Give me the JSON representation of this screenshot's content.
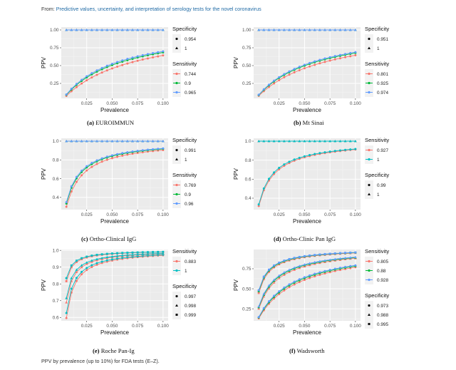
{
  "header": {
    "prefix": "From: ",
    "link_text": "Predictive values, uncertainty, and interpretation of serology tests for the novel coronavirus"
  },
  "footer": {
    "caption": "PPV by prevalence (up to 10%) for FDA tests (E–Z)."
  },
  "colors": {
    "red": "#F8766D",
    "green": "#00BA38",
    "blue": "#619CFF",
    "cyan": "#00BFC4",
    "panel_bg": "#EBEBEB"
  },
  "chart_data": [
    {
      "id": "a",
      "type": "line",
      "caption_label": "(a)",
      "caption_text": "EUROIMMUN",
      "xlabel": "Prevalence",
      "ylabel": "PPV",
      "x_range": [
        0.005,
        0.1
      ],
      "x_step": 0.005,
      "xlim": [
        0.0,
        0.105
      ],
      "ylim": [
        0.04,
        1.04
      ],
      "xticks": [
        "0.025",
        "0.050",
        "0.075",
        "0.100"
      ],
      "xtick_values": [
        0.025,
        0.05,
        0.075,
        0.1
      ],
      "yticks": [
        "0.25",
        "0.50",
        "0.75",
        "1.00"
      ],
      "ytick_values": [
        0.25,
        0.5,
        0.75,
        1.0
      ],
      "legend_order": [
        "specificity",
        "sensitivity"
      ],
      "sensitivity": {
        "title": "Sensitivity",
        "values": [
          "0.744",
          "0.9",
          "0.965"
        ],
        "colors": [
          "#F8766D",
          "#00BA38",
          "#619CFF"
        ]
      },
      "specificity": {
        "title": "Specificity",
        "values": [
          "0.954",
          "1"
        ],
        "shapes": [
          "circle",
          "triangle"
        ]
      },
      "series_note": "PPV = Se*p/(Se*p+(1-Sp)*(1-p)) for each Sensitivity x Specificity combination"
    },
    {
      "id": "b",
      "type": "line",
      "caption_label": "(b)",
      "caption_text": "Mt Sinai",
      "xlabel": "Prevalence",
      "ylabel": "PPV",
      "x_range": [
        0.005,
        0.1
      ],
      "x_step": 0.005,
      "xlim": [
        0.0,
        0.105
      ],
      "ylim": [
        0.04,
        1.04
      ],
      "xticks": [
        "0.025",
        "0.050",
        "0.075",
        "0.100"
      ],
      "xtick_values": [
        0.025,
        0.05,
        0.075,
        0.1
      ],
      "yticks": [
        "0.25",
        "0.50",
        "0.75",
        "1.00"
      ],
      "ytick_values": [
        0.25,
        0.5,
        0.75,
        1.0
      ],
      "legend_order": [
        "specificity",
        "sensitivity"
      ],
      "sensitivity": {
        "title": "Sensitivity",
        "values": [
          "0.801",
          "0.925",
          "0.974"
        ],
        "colors": [
          "#F8766D",
          "#00BA38",
          "#619CFF"
        ]
      },
      "specificity": {
        "title": "Specificity",
        "values": [
          "0.951",
          "1"
        ],
        "shapes": [
          "circle",
          "triangle"
        ]
      }
    },
    {
      "id": "c",
      "type": "line",
      "caption_label": "(c)",
      "caption_text": "Ortho-Clinical IgG",
      "xlabel": "Prevalence",
      "ylabel": "PPV",
      "x_range": [
        0.005,
        0.1
      ],
      "x_step": 0.005,
      "xlim": [
        0.0,
        0.105
      ],
      "ylim": [
        0.27,
        1.03
      ],
      "xticks": [
        "0.025",
        "0.050",
        "0.075",
        "0.100"
      ],
      "xtick_values": [
        0.025,
        0.05,
        0.075,
        0.1
      ],
      "yticks": [
        "0.4",
        "0.6",
        "0.8",
        "1.0"
      ],
      "ytick_values": [
        0.4,
        0.6,
        0.8,
        1.0
      ],
      "legend_order": [
        "specificity",
        "sensitivity"
      ],
      "sensitivity": {
        "title": "Sensitivity",
        "values": [
          "0.769",
          "0.9",
          "0.96"
        ],
        "colors": [
          "#F8766D",
          "#00BA38",
          "#619CFF"
        ]
      },
      "specificity": {
        "title": "Specificity",
        "values": [
          "0.991",
          "1"
        ],
        "shapes": [
          "circle",
          "triangle"
        ]
      }
    },
    {
      "id": "d",
      "type": "line",
      "caption_label": "(d)",
      "caption_text": "Ortho-Clinic Pan IgG",
      "xlabel": "Prevalence",
      "ylabel": "PPV",
      "x_range": [
        0.005,
        0.1
      ],
      "x_step": 0.005,
      "xlim": [
        0.0,
        0.105
      ],
      "ylim": [
        0.28,
        1.03
      ],
      "xticks": [
        "0.025",
        "0.050",
        "0.075",
        "0.100"
      ],
      "xtick_values": [
        0.025,
        0.05,
        0.075,
        0.1
      ],
      "yticks": [
        "0.4",
        "0.6",
        "0.8",
        "1.0"
      ],
      "ytick_values": [
        0.4,
        0.6,
        0.8,
        1.0
      ],
      "legend_order": [
        "sensitivity",
        "specificity"
      ],
      "sensitivity": {
        "title": "Sensitivity",
        "values": [
          "0.927",
          "1"
        ],
        "colors": [
          "#F8766D",
          "#00BFC4"
        ]
      },
      "specificity": {
        "title": "Specificity",
        "values": [
          "0.99",
          "1"
        ],
        "shapes": [
          "circle",
          "triangle"
        ]
      }
    },
    {
      "id": "e",
      "type": "line",
      "caption_label": "(e)",
      "caption_text": "Roche Pan-Ig",
      "xlabel": "Prevalence",
      "ylabel": "PPV",
      "x_range": [
        0.005,
        0.1
      ],
      "x_step": 0.005,
      "xlim": [
        0.0,
        0.105
      ],
      "ylim": [
        0.58,
        1.005
      ],
      "xticks": [
        "0.025",
        "0.050",
        "0.075",
        "0.100"
      ],
      "xtick_values": [
        0.025,
        0.05,
        0.075,
        0.1
      ],
      "yticks": [
        "0.6",
        "0.7",
        "0.8",
        "0.9",
        "1.0"
      ],
      "ytick_values": [
        0.6,
        0.7,
        0.8,
        0.9,
        1.0
      ],
      "legend_order": [
        "sensitivity",
        "specificity"
      ],
      "sensitivity": {
        "title": "Sensitivity",
        "values": [
          "0.883",
          "1"
        ],
        "colors": [
          "#F8766D",
          "#00BFC4"
        ]
      },
      "specificity": {
        "title": "Specificity",
        "values": [
          "0.997",
          "0.998",
          "0.999"
        ],
        "shapes": [
          "circle",
          "triangle",
          "square"
        ]
      }
    },
    {
      "id": "f",
      "type": "line",
      "caption_label": "(f)",
      "caption_text": "Wadsworth",
      "xlabel": "Prevalence",
      "ylabel": "PPV",
      "x_range": [
        0.005,
        0.1
      ],
      "x_step": 0.005,
      "xlim": [
        0.0,
        0.105
      ],
      "ylim": [
        0.1,
        0.99
      ],
      "xticks": [
        "0.025",
        "0.050",
        "0.075",
        "0.100"
      ],
      "xtick_values": [
        0.025,
        0.05,
        0.075,
        0.1
      ],
      "yticks": [
        "0.25",
        "0.50",
        "0.75"
      ],
      "ytick_values": [
        0.25,
        0.5,
        0.75
      ],
      "legend_order": [
        "sensitivity",
        "specificity"
      ],
      "sensitivity": {
        "title": "Sensitivity",
        "values": [
          "0.805",
          "0.88",
          "0.928"
        ],
        "colors": [
          "#F8766D",
          "#00BA38",
          "#619CFF"
        ]
      },
      "specificity": {
        "title": "Specificity",
        "values": [
          "0.973",
          "0.988",
          "0.995"
        ],
        "shapes": [
          "circle",
          "triangle",
          "square"
        ]
      }
    }
  ]
}
